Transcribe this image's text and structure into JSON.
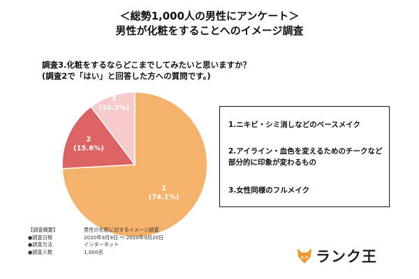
{
  "header": {
    "title_line1": "＜総勢1,000人の男性にアンケート＞",
    "title_line2": "男性が化粧をすることへのイメージ調査"
  },
  "question": {
    "line1": "調査3.化粧をするならどこまでしてみたいと思いますか？",
    "line2": "(調査2で「はい」と回答した方への質問です。)"
  },
  "chart_data": {
    "type": "pie",
    "categories": [
      "1",
      "2",
      "3"
    ],
    "values": [
      74.1,
      15.6,
      10.3
    ],
    "data_labels": [
      {
        "id": "1",
        "percent": "(74.1%)"
      },
      {
        "id": "2",
        "percent": "(15.6%)"
      },
      {
        "id": "3",
        "percent": "(10.3%)"
      }
    ],
    "colors": [
      "#F5B26B",
      "#DC6263",
      "#F6C9CA"
    ],
    "legend_placement": "right",
    "legend": [
      "1.ニキビ・シミ消しなどのベースメイク",
      "2.アイライン・血色を変えるためのチークなど部分的に印象が変わるもの",
      "3.女性同様のフルメイク"
    ]
  },
  "survey": {
    "rows": [
      {
        "key": "【調査概要】",
        "value": "男性の化粧に対するイメージ調査"
      },
      {
        "key": "●調査日程",
        "value": "2020年9月9日 〜 2020年9月20日"
      },
      {
        "key": "●調査方法",
        "value": "インターネット"
      },
      {
        "key": "●調査人数",
        "value": "1,000名"
      }
    ]
  },
  "logo": {
    "text": "ランク王",
    "icon": "fox-logo-icon",
    "color": "#F29A2E"
  }
}
